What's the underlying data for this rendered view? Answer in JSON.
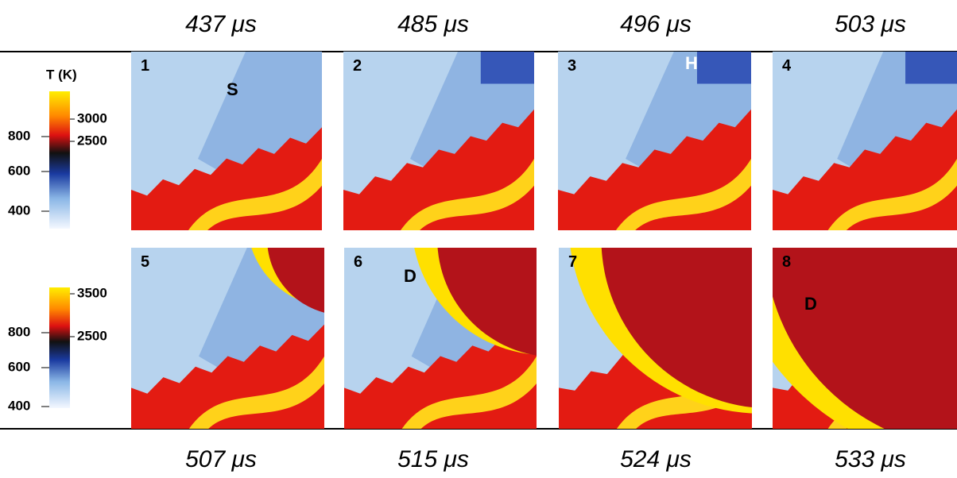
{
  "top_times": [
    "437 μs",
    "485 μs",
    "496 μs",
    "503 μs"
  ],
  "bottom_times": [
    "507 μs",
    "515 μs",
    "524 μs",
    "533 μs"
  ],
  "colorbars": [
    {
      "title": "T (K)",
      "left_ticks": [
        "800",
        "600",
        "400"
      ],
      "right_ticks": [
        "3000",
        "2500"
      ]
    },
    {
      "left_ticks": [
        "800",
        "600",
        "400"
      ],
      "right_ticks": [
        "3500",
        "2500"
      ]
    }
  ],
  "panels": [
    {
      "number": "1",
      "label": "S"
    },
    {
      "number": "2"
    },
    {
      "number": "3",
      "label": "H"
    },
    {
      "number": "4"
    },
    {
      "number": "5"
    },
    {
      "number": "6",
      "label": "D"
    },
    {
      "number": "7"
    },
    {
      "number": "8",
      "label": "D"
    }
  ]
}
